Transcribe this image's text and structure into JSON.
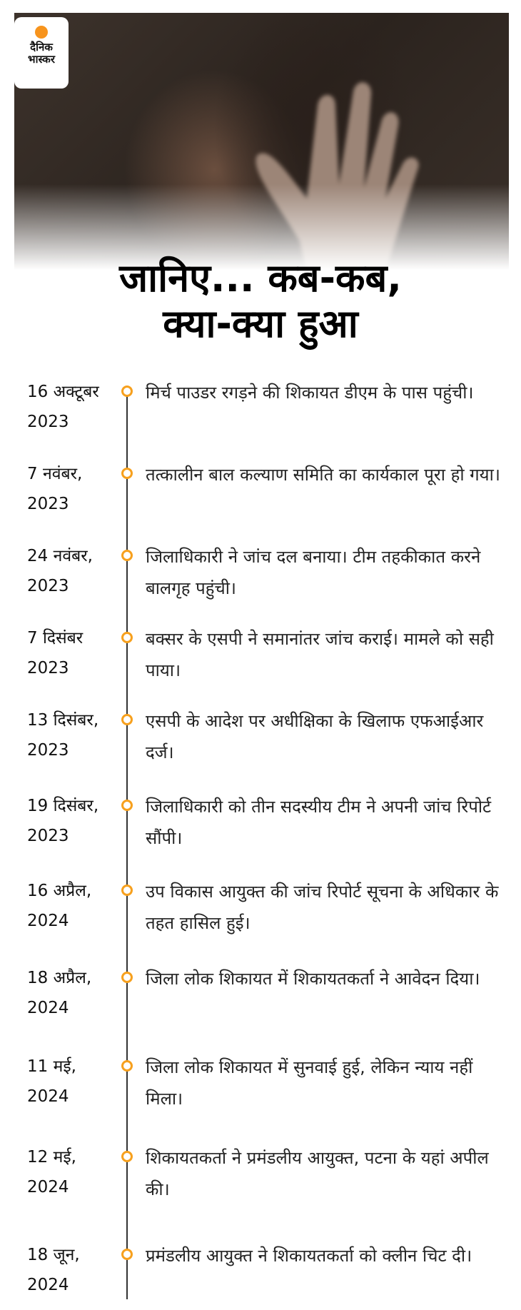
{
  "logo": {
    "line1": "दैनिक",
    "line2": "भास्कर",
    "accent": "#f7941d"
  },
  "title": {
    "line1": "जानिए... कब-कब,",
    "line2": "क्या-क्या हुआ"
  },
  "timeline_color": "#f7a01d",
  "events": [
    {
      "date1": "16 अक्टूबर",
      "date2": "2023",
      "text": "मिर्च पाउडर रगड़ने की शिकायत डीएम के पास पहुंची।"
    },
    {
      "date1": "7 नवंबर,",
      "date2": "2023",
      "text": "तत्कालीन बाल कल्याण समिति का कार्यकाल पूरा हो गया।"
    },
    {
      "date1": "24 नवंबर,",
      "date2": "2023",
      "text": "जिलाधिकारी ने जांच दल बनाया। टीम तहकीकात करने बालगृह पहुंची।"
    },
    {
      "date1": "7 दिसंबर",
      "date2": "2023",
      "text": "बक्सर के एसपी ने समानांतर जांच कराई। मामले को सही पाया।"
    },
    {
      "date1": "13 दिसंबर,",
      "date2": "2023",
      "text": "एसपी के आदेश पर अधीक्षिका के खिलाफ एफआईआर दर्ज।"
    },
    {
      "date1": "19 दिसंबर,",
      "date2": "2023",
      "text": "जिलाधिकारी को तीन सदस्यीय टीम ने अपनी जांच रिपोर्ट सौंपी।"
    },
    {
      "date1": "16 अप्रैल,",
      "date2": "2024",
      "text": "उप विकास आयुक्त की जांच रिपोर्ट सूचना के अधिकार के तहत हासिल हुई।"
    },
    {
      "date1": "18 अप्रैल,",
      "date2": "2024",
      "text": "जिला लोक शिकायत में शिकायतकर्ता ने आवेदन दिया।"
    },
    {
      "date1": "11 मई,",
      "date2": "2024",
      "text": "जिला लोक शिकायत में सुनवाई हुई, लेकिन न्याय नहीं मिला।"
    },
    {
      "date1": "12 मई,",
      "date2": "2024",
      "text": "शिकायतकर्ता ने प्रमंडलीय आयुक्त, पटना के यहां अपील की।"
    },
    {
      "date1": "18 जून,",
      "date2": "2024",
      "text": "प्रमंडलीय आयुक्त ने शिकायतकर्ता को क्लीन चिट दी।"
    }
  ]
}
